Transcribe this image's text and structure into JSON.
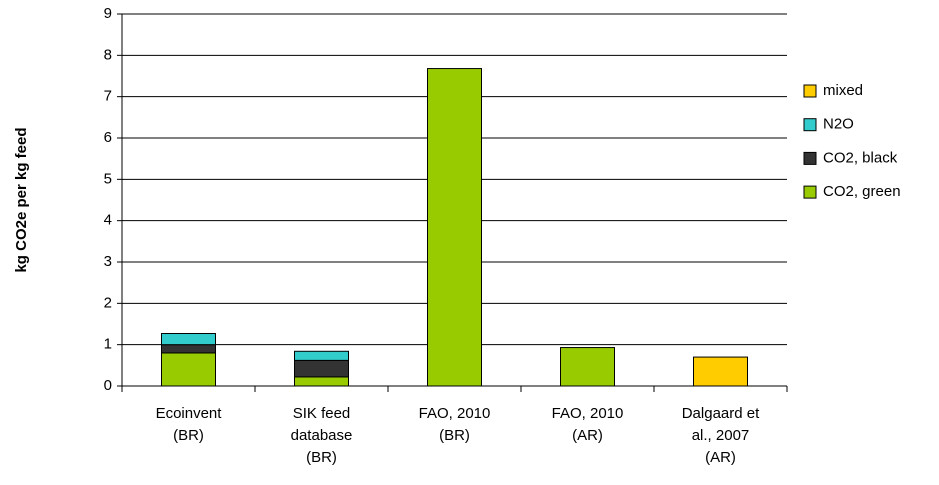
{
  "chart_data": {
    "type": "bar",
    "stacked": true,
    "y_label": "kg CO2e per kg feed",
    "categories": [
      "Ecoinvent\n(BR)",
      "SIK feed\ndatabase\n(BR)",
      "FAO, 2010\n(BR)",
      "FAO, 2010\n(AR)",
      "Dalgaard et\nal., 2007\n(AR)"
    ],
    "series": [
      {
        "name": "CO2, green",
        "color": "#99cc00",
        "values": [
          0.8,
          0.22,
          7.68,
          0.93,
          0
        ]
      },
      {
        "name": "CO2, black",
        "color": "#333333",
        "values": [
          0.2,
          0.4,
          0,
          0,
          0
        ]
      },
      {
        "name": "N2O",
        "color": "#33cccc",
        "values": [
          0.27,
          0.22,
          0,
          0,
          0
        ]
      },
      {
        "name": "mixed",
        "color": "#ffcc00",
        "values": [
          0,
          0,
          0,
          0,
          0.7
        ]
      }
    ],
    "ylim": [
      0,
      9
    ],
    "yticks": [
      0,
      1,
      2,
      3,
      4,
      5,
      6,
      7,
      8,
      9
    ],
    "grid": true,
    "legend": "right"
  }
}
